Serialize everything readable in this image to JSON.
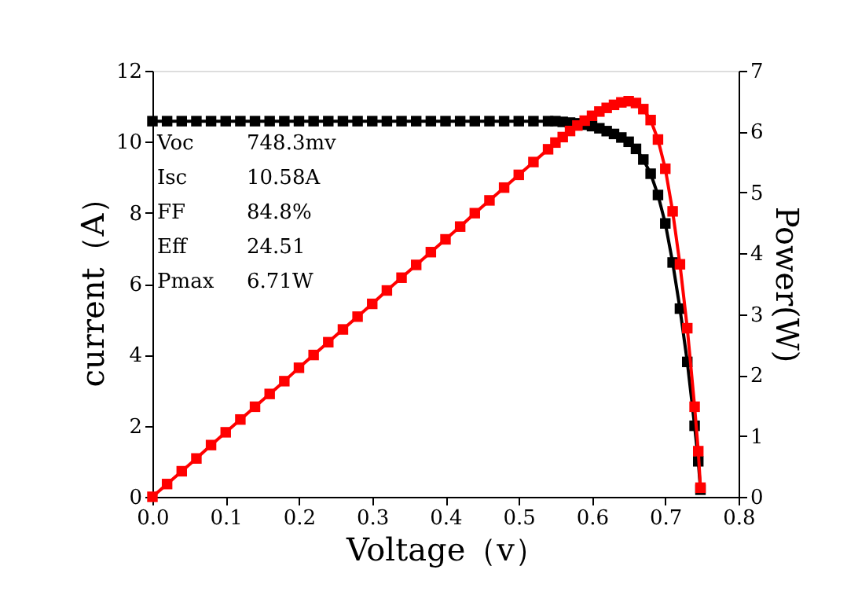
{
  "chart_data": {
    "type": "line",
    "xlabel": "Voltage（v）",
    "ylabel": "current（A）",
    "y2label": "Power(W)",
    "x": [
      0,
      0.02,
      0.04,
      0.06,
      0.08,
      0.1,
      0.12,
      0.14,
      0.16,
      0.18,
      0.2,
      0.22,
      0.24,
      0.26,
      0.28,
      0.3,
      0.32,
      0.34,
      0.36,
      0.38,
      0.4,
      0.42,
      0.44,
      0.46,
      0.48,
      0.5,
      0.52,
      0.54,
      0.55,
      0.56,
      0.57,
      0.58,
      0.59,
      0.6,
      0.61,
      0.62,
      0.63,
      0.64,
      0.65,
      0.66,
      0.67,
      0.68,
      0.69,
      0.7,
      0.71,
      0.72,
      0.73,
      0.74,
      0.745,
      0.748
    ],
    "series": [
      {
        "color": "#000000",
        "axis": "y",
        "values": [
          10.58,
          10.58,
          10.58,
          10.58,
          10.58,
          10.58,
          10.58,
          10.58,
          10.58,
          10.58,
          10.58,
          10.58,
          10.58,
          10.58,
          10.58,
          10.58,
          10.58,
          10.58,
          10.58,
          10.58,
          10.58,
          10.58,
          10.58,
          10.58,
          10.58,
          10.58,
          10.58,
          10.58,
          10.58,
          10.56,
          10.54,
          10.52,
          10.48,
          10.44,
          10.38,
          10.3,
          10.22,
          10.12,
          10.0,
          9.8,
          9.5,
          9.1,
          8.5,
          7.7,
          6.6,
          5.3,
          3.8,
          2.0,
          1.0,
          0.2
        ]
      },
      {
        "color": "#ff0000",
        "axis": "y2",
        "values": [
          0,
          0.21,
          0.42,
          0.63,
          0.85,
          1.06,
          1.27,
          1.48,
          1.69,
          1.9,
          2.12,
          2.33,
          2.54,
          2.75,
          2.96,
          3.17,
          3.39,
          3.6,
          3.81,
          4.02,
          4.23,
          4.44,
          4.66,
          4.87,
          5.08,
          5.29,
          5.5,
          5.71,
          5.82,
          5.91,
          6.01,
          6.1,
          6.18,
          6.26,
          6.33,
          6.39,
          6.44,
          6.48,
          6.5,
          6.47,
          6.37,
          6.19,
          5.87,
          5.39,
          4.69,
          3.82,
          2.77,
          1.48,
          0.75,
          0.15
        ]
      }
    ],
    "xlim": [
      0,
      0.8
    ],
    "xticks": [
      {
        "value": 0,
        "label": "0.0"
      },
      0.1,
      0.2,
      0.3,
      0.4,
      0.5,
      0.6,
      0.7,
      0.8
    ],
    "ylim": [
      0,
      12
    ],
    "yticks": [
      0,
      2,
      4,
      6,
      8,
      10,
      12
    ],
    "y2lim": [
      0,
      7
    ],
    "y2ticks": [
      0,
      1,
      2,
      3,
      4,
      5,
      6,
      7
    ],
    "annotations": [
      "Voc 748.3mv",
      "Isc 10.58A",
      "FF 84.8%",
      "Eff 24.51",
      "Pmax 6.71W"
    ],
    "marker": "square",
    "line_style": "solid",
    "grid": false,
    "legend": false
  }
}
